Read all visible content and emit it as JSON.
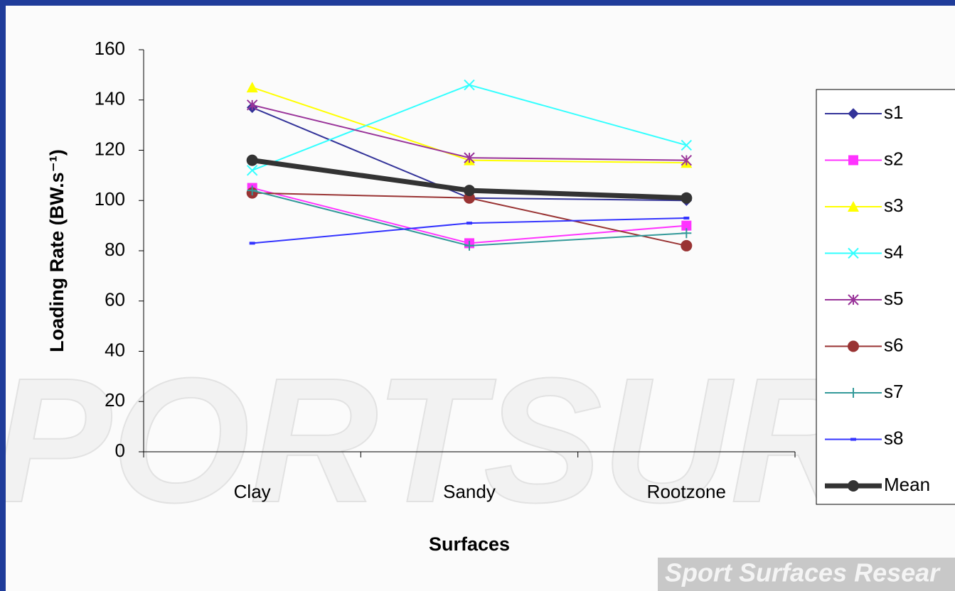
{
  "background": {
    "logo": "PORTSUR",
    "tagline": "Sport Surfaces Resear"
  },
  "chart_data": {
    "type": "line",
    "xlabel": "Surfaces",
    "ylabel": "Loading Rate (BW.s⁻¹)",
    "categories": [
      "Clay",
      "Sandy",
      "Rootzone"
    ],
    "ylim": [
      0,
      160
    ],
    "yticks": [
      0,
      20,
      40,
      60,
      80,
      100,
      120,
      140,
      160
    ],
    "grid": false,
    "legend": "right",
    "series": [
      {
        "name": "s1",
        "color": "#333399",
        "marker": "diamond",
        "values": [
          137,
          101,
          100
        ]
      },
      {
        "name": "s2",
        "color": "#ff33ff",
        "marker": "square",
        "values": [
          105,
          83,
          90
        ]
      },
      {
        "name": "s3",
        "color": "#ffff00",
        "marker": "triangle",
        "values": [
          145,
          116,
          115
        ]
      },
      {
        "name": "s4",
        "color": "#33ffff",
        "marker": "x",
        "values": [
          112,
          146,
          122
        ]
      },
      {
        "name": "s5",
        "color": "#993399",
        "marker": "asterisk",
        "values": [
          138,
          117,
          116
        ]
      },
      {
        "name": "s6",
        "color": "#993333",
        "marker": "circle",
        "values": [
          103,
          101,
          82
        ]
      },
      {
        "name": "s7",
        "color": "#339999",
        "marker": "plus",
        "values": [
          104,
          82,
          87
        ]
      },
      {
        "name": "s8",
        "color": "#3333ff",
        "marker": "dash",
        "values": [
          83,
          91,
          93
        ]
      },
      {
        "name": "Mean",
        "color": "#333333",
        "marker": "circle",
        "width": 7,
        "values": [
          116,
          104,
          101
        ]
      }
    ]
  }
}
